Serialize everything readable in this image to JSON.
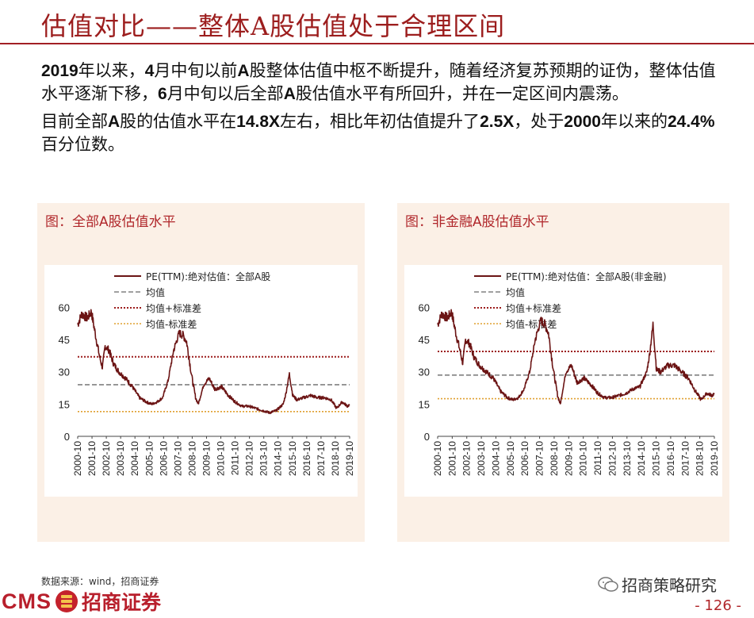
{
  "header": {
    "title": "估值对比——整体A股估值处于合理区间"
  },
  "bullets": [
    [
      {
        "text": "2019",
        "bold": true
      },
      {
        "text": "年以来，",
        "bold": false
      },
      {
        "text": "4",
        "bold": true
      },
      {
        "text": "月中旬以前",
        "bold": false
      },
      {
        "text": "A",
        "bold": true
      },
      {
        "text": "股整体估值中枢不断提升，随着经济复苏预期的证伪，整体估值水平逐渐下移，",
        "bold": false
      },
      {
        "text": "6",
        "bold": true
      },
      {
        "text": "月中旬以后全部",
        "bold": false
      },
      {
        "text": "A",
        "bold": true
      },
      {
        "text": "股估值水平有所回升，并在一定区间内震荡。",
        "bold": false
      }
    ],
    [
      {
        "text": "目前全部",
        "bold": false
      },
      {
        "text": "A",
        "bold": true
      },
      {
        "text": "股的估值水平在",
        "bold": false
      },
      {
        "text": "14.8X",
        "bold": true
      },
      {
        "text": "左右，相比年初估值提升了",
        "bold": false
      },
      {
        "text": "2.5X",
        "bold": true
      },
      {
        "text": "，处于",
        "bold": false
      },
      {
        "text": "2000",
        "bold": true
      },
      {
        "text": "年以来的",
        "bold": false
      },
      {
        "text": "24.4%",
        "bold": true
      },
      {
        "text": "百分位数。",
        "bold": false
      }
    ]
  ],
  "colors": {
    "accent": "#a21f24",
    "pe": "#6b1414",
    "mean": "#808080",
    "plus": "#9c1d1d",
    "minus": "#e0a030",
    "panel_bg": "#fbf0e6"
  },
  "chart_data": [
    {
      "panel_title": "图：全部A股估值水平",
      "type": "line",
      "x_ticks": [
        "2000-10",
        "2001-10",
        "2002-10",
        "2003-10",
        "2004-10",
        "2005-10",
        "2006-10",
        "2007-10",
        "2008-10",
        "2009-10",
        "2010-10",
        "2011-10",
        "2012-10",
        "2013-10",
        "2014-10",
        "2015-10",
        "2016-10",
        "2017-10",
        "2018-10",
        "2019-10"
      ],
      "y_ticks": [
        0,
        15,
        30,
        45,
        60
      ],
      "ylim": [
        0,
        62
      ],
      "legend_position": "top",
      "series": [
        {
          "name": "PE(TTM):绝对估值：全部A股",
          "kind": "pe",
          "x": [
            2000.0,
            2000.3,
            2000.7,
            2001.0,
            2001.3,
            2001.6,
            2001.8,
            2002.0,
            2002.3,
            2002.6,
            2003.0,
            2003.5,
            2004.0,
            2004.5,
            2005.0,
            2005.4,
            2005.8,
            2006.2,
            2006.6,
            2007.0,
            2007.4,
            2007.7,
            2007.95,
            2008.3,
            2008.6,
            2008.8,
            2009.2,
            2009.6,
            2010.0,
            2010.5,
            2011.0,
            2011.5,
            2012.0,
            2012.5,
            2013.0,
            2013.5,
            2014.0,
            2014.5,
            2015.0,
            2015.2,
            2015.45,
            2015.7,
            2016.0,
            2016.5,
            2017.0,
            2017.5,
            2018.0,
            2018.5,
            2018.9,
            2019.3,
            2019.7,
            2019.85
          ],
          "y": [
            52,
            57,
            55,
            58,
            47,
            37,
            32,
            42,
            40,
            34,
            30,
            27,
            23,
            18,
            16,
            15,
            16,
            18,
            26,
            40,
            48,
            47,
            44,
            29,
            18,
            15,
            24,
            27,
            22,
            23,
            19,
            16,
            14,
            14,
            13,
            12,
            11,
            12,
            15,
            20,
            29,
            19,
            17,
            18,
            19,
            18,
            18,
            17,
            13,
            16,
            14,
            14.8
          ]
        },
        {
          "name": "均值",
          "kind": "mean",
          "value": 24
        },
        {
          "name": "均值+标准差",
          "kind": "plus",
          "value": 37
        },
        {
          "name": "均值-标准差",
          "kind": "minus",
          "value": 11.5
        }
      ]
    },
    {
      "panel_title": "图：非金融A股估值水平",
      "type": "line",
      "x_ticks": [
        "2000-10",
        "2001-10",
        "2002-10",
        "2003-10",
        "2004-10",
        "2005-10",
        "2006-10",
        "2007-10",
        "2008-10",
        "2009-10",
        "2010-10",
        "2011-10",
        "2012-10",
        "2013-10",
        "2014-10",
        "2015-10",
        "2016-10",
        "2017-10",
        "2018-10",
        "2019-10"
      ],
      "y_ticks": [
        0,
        15,
        30,
        45,
        60
      ],
      "ylim": [
        0,
        62
      ],
      "legend_position": "top",
      "series": [
        {
          "name": "PE(TTM):绝对估值：全部A股(非金融)",
          "kind": "pe",
          "x": [
            2000.0,
            2000.3,
            2000.7,
            2001.0,
            2001.3,
            2001.6,
            2001.8,
            2002.0,
            2002.3,
            2002.6,
            2003.0,
            2003.5,
            2004.0,
            2004.5,
            2005.0,
            2005.4,
            2005.8,
            2006.2,
            2006.6,
            2007.0,
            2007.4,
            2007.7,
            2007.95,
            2008.3,
            2008.6,
            2008.8,
            2009.2,
            2009.6,
            2010.0,
            2010.5,
            2011.0,
            2011.5,
            2012.0,
            2012.5,
            2013.0,
            2013.5,
            2014.0,
            2014.5,
            2015.0,
            2015.2,
            2015.45,
            2015.7,
            2016.0,
            2016.5,
            2017.0,
            2017.5,
            2018.0,
            2018.5,
            2018.9,
            2019.3,
            2019.7,
            2019.85
          ],
          "y": [
            52,
            57,
            55,
            58,
            48,
            40,
            34,
            45,
            43,
            37,
            33,
            30,
            27,
            21,
            18,
            17,
            18,
            22,
            30,
            45,
            54,
            52,
            48,
            31,
            19,
            15,
            30,
            33,
            25,
            27,
            24,
            20,
            18,
            18,
            19,
            20,
            22,
            23,
            30,
            38,
            52,
            31,
            30,
            33,
            33,
            30,
            27,
            21,
            17,
            20,
            19,
            20
          ]
        },
        {
          "name": "均值",
          "kind": "mean",
          "value": 28.5
        },
        {
          "name": "均值+标准差",
          "kind": "plus",
          "value": 39.5
        },
        {
          "name": "均值-标准差",
          "kind": "minus",
          "value": 17.5
        }
      ]
    }
  ],
  "footer": {
    "source": "数据来源：wind，招商证券",
    "logo_en": "CMS",
    "logo_cn": "招商证券",
    "wechat": "招商策略研究",
    "page": "- 126 -"
  }
}
